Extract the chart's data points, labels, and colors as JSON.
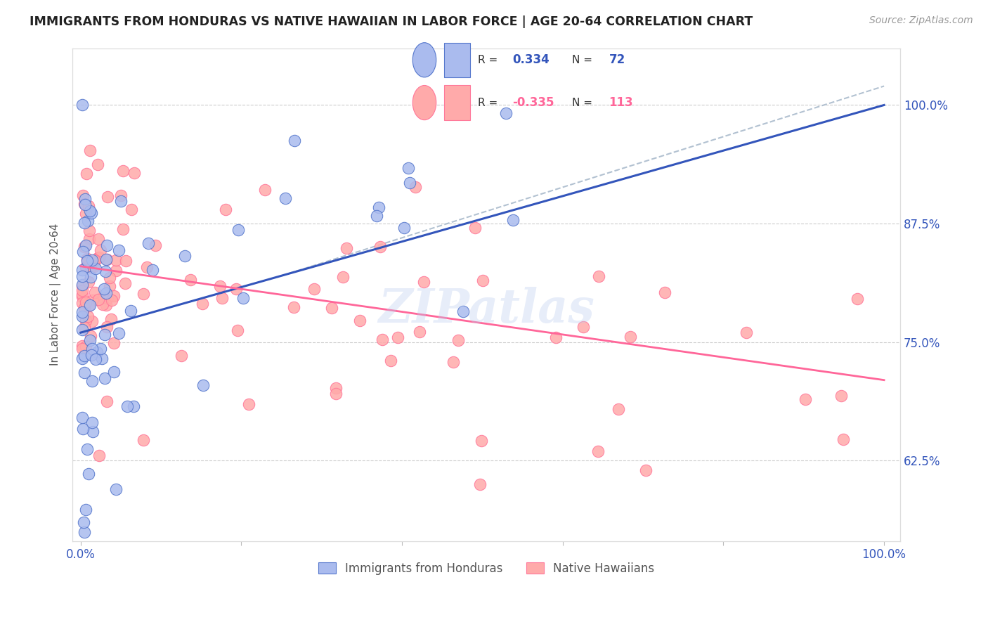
{
  "title": "IMMIGRANTS FROM HONDURAS VS NATIVE HAWAIIAN IN LABOR FORCE | AGE 20-64 CORRELATION CHART",
  "source": "Source: ZipAtlas.com",
  "ylabel": "In Labor Force | Age 20-64",
  "x_tick_labels": [
    "0.0%",
    "",
    "",
    "",
    "",
    "100.0%"
  ],
  "y_tick_labels_right": [
    "62.5%",
    "75.0%",
    "87.5%",
    "100.0%"
  ],
  "xlim": [
    0.0,
    1.0
  ],
  "ylim": [
    0.54,
    1.06
  ],
  "legend_r_blue": "0.334",
  "legend_n_blue": "72",
  "legend_r_pink": "-0.335",
  "legend_n_pink": "113",
  "color_blue_fill": "#AABBEE",
  "color_blue_edge": "#5577CC",
  "color_pink_fill": "#FFAAAA",
  "color_pink_edge": "#FF7799",
  "color_blue_line": "#3355BB",
  "color_pink_line": "#FF6699",
  "color_dashed": "#AABBCC",
  "watermark": "ZIPatlas",
  "legend_label_blue": "Immigrants from Honduras",
  "legend_label_pink": "Native Hawaiians",
  "blue_line_x0": 0.0,
  "blue_line_y0": 0.76,
  "blue_line_x1": 1.0,
  "blue_line_y1": 1.0,
  "pink_line_x0": 0.0,
  "pink_line_y0": 0.83,
  "pink_line_x1": 1.0,
  "pink_line_y1": 0.71,
  "dash_line_x0": 0.25,
  "dash_line_y0": 0.82,
  "dash_line_x1": 1.0,
  "dash_line_y1": 1.02
}
